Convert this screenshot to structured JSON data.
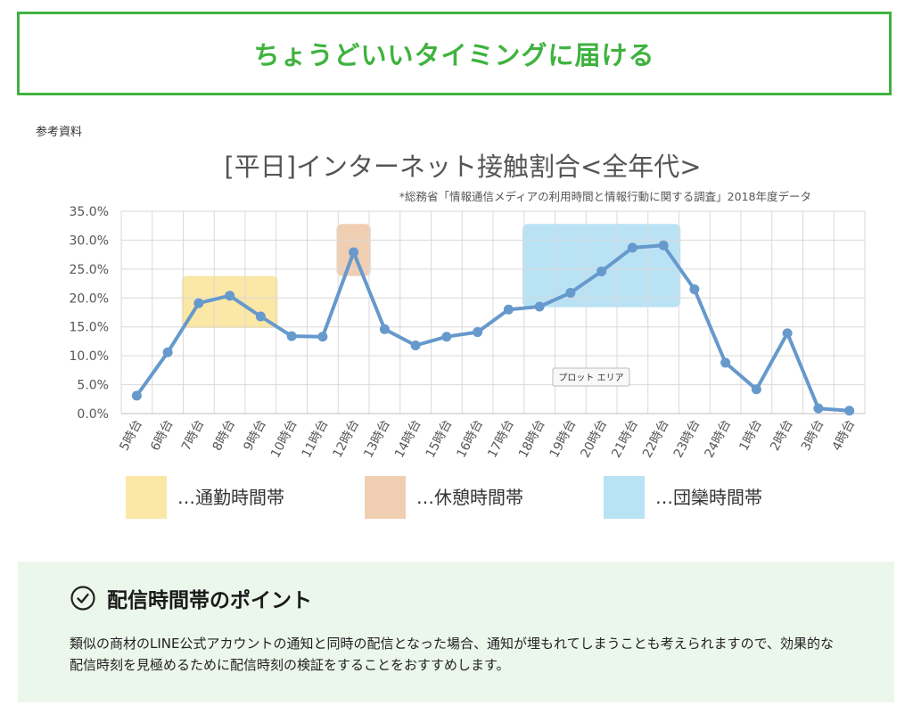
{
  "banner": {
    "title": "ちょうどいいタイミングに届ける"
  },
  "reference_label": "参考資料",
  "chart_data": {
    "type": "line",
    "title": "[平日]インターネット接触割合<全年代>",
    "subtitle": "*総務省「情報通信メディアの利用時間と情報行動に関する調査」2018年度データ",
    "categories": [
      "5時台",
      "6時台",
      "7時台",
      "8時台",
      "9時台",
      "10時台",
      "11時台",
      "12時台",
      "13時台",
      "14時台",
      "15時台",
      "16時台",
      "17時台",
      "18時台",
      "19時台",
      "20時台",
      "21時台",
      "22時台",
      "23時台",
      "24時台",
      "1時台",
      "2時台",
      "3時台",
      "4時台"
    ],
    "series": [
      {
        "values": [
          3.1,
          10.6,
          19.1,
          20.4,
          16.8,
          13.4,
          13.3,
          27.9,
          14.6,
          11.8,
          13.3,
          14.1,
          18.0,
          18.5,
          20.9,
          24.6,
          28.7,
          29.1,
          21.5,
          8.8,
          4.2,
          13.9,
          0.9,
          0.5
        ]
      }
    ],
    "y_ticks": [
      "0.0%",
      "5.0%",
      "10.0%",
      "15.0%",
      "20.0%",
      "25.0%",
      "30.0%",
      "35.0%"
    ],
    "ylim": [
      0,
      35
    ],
    "grid": true,
    "line_color": "#6699cc",
    "tooltip": "プロット エリア",
    "highlight_bands": [
      {
        "label": "…通勤時間帯",
        "from": "7時台",
        "to": "9時台",
        "ymin": 14.8,
        "ymax": 23.8,
        "color": "#fbe7a6"
      },
      {
        "label": "…休憩時間帯",
        "from": "12時台",
        "to": "12時台",
        "ymin": 23.8,
        "ymax": 32.8,
        "color": "#f0ceb2"
      },
      {
        "label": "…団欒時間帯",
        "from": "18時台",
        "to": "22時台",
        "ymin": 18.4,
        "ymax": 32.8,
        "color": "#b9e2f5"
      }
    ]
  },
  "points": {
    "title": "配信時間帯のポイント",
    "body": "類似の商材のLINE公式アカウントの通知と同時の配信となった場合、通知が埋もれてしまうことも考えられますので、効果的な配信時刻を見極めるために配信時刻の検証をすることをおすすめします。"
  }
}
